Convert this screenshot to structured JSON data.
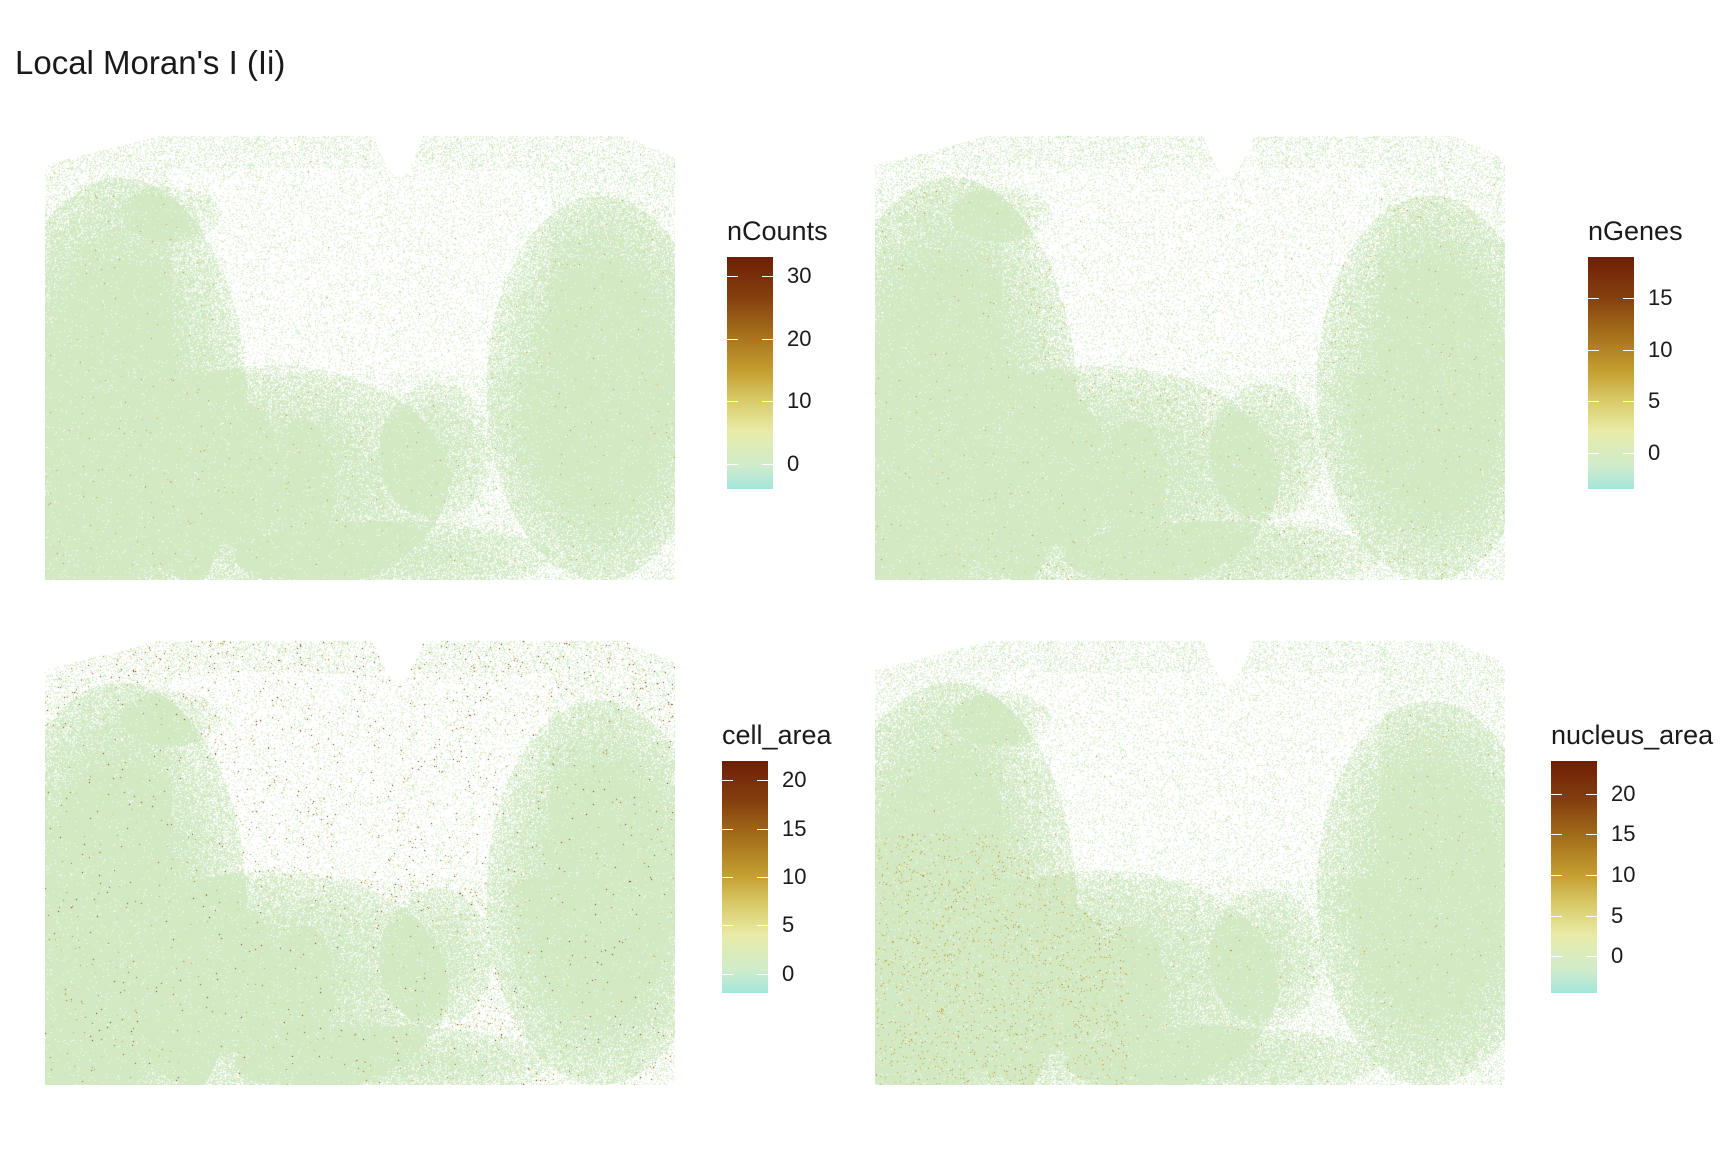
{
  "title": "Local Moran's I (Ii)",
  "chart_data": [
    {
      "type": "heatmap",
      "legend_title": "nCounts",
      "scale_min": -4,
      "scale_max": 33,
      "ticks": [
        0,
        10,
        20,
        30
      ],
      "colorscale": [
        "#a4e6dc",
        "#cfeccb",
        "#e9eba7",
        "#d9cb6a",
        "#c6a133",
        "#a6721c",
        "#86410f",
        "#6e1e05"
      ],
      "legend_position": "right",
      "pattern": "uniform-low"
    },
    {
      "type": "heatmap",
      "legend_title": "nGenes",
      "scale_min": -3.5,
      "scale_max": 19,
      "ticks": [
        0,
        5,
        10,
        15
      ],
      "colorscale": [
        "#a4e6dc",
        "#cfeccb",
        "#e9eba7",
        "#d9cb6a",
        "#c6a133",
        "#a6721c",
        "#86410f",
        "#6e1e05"
      ],
      "legend_position": "right",
      "pattern": "boundary-hotspots"
    },
    {
      "type": "heatmap",
      "legend_title": "cell_area",
      "scale_min": -2,
      "scale_max": 22,
      "ticks": [
        0,
        5,
        10,
        15,
        20
      ],
      "colorscale": [
        "#a4e6dc",
        "#cfeccb",
        "#e9eba7",
        "#d9cb6a",
        "#c6a133",
        "#a6721c",
        "#86410f",
        "#6e1e05"
      ],
      "legend_position": "right",
      "pattern": "sparse-region-hotspots"
    },
    {
      "type": "heatmap",
      "legend_title": "nucleus_area",
      "scale_min": -4.5,
      "scale_max": 24,
      "ticks": [
        0,
        5,
        10,
        15,
        20
      ],
      "colorscale": [
        "#a4e6dc",
        "#cfeccb",
        "#e9eba7",
        "#d9cb6a",
        "#c6a133",
        "#a6721c",
        "#86410f",
        "#6e1e05"
      ],
      "legend_position": "right",
      "pattern": "dense-region-hotspots"
    }
  ]
}
